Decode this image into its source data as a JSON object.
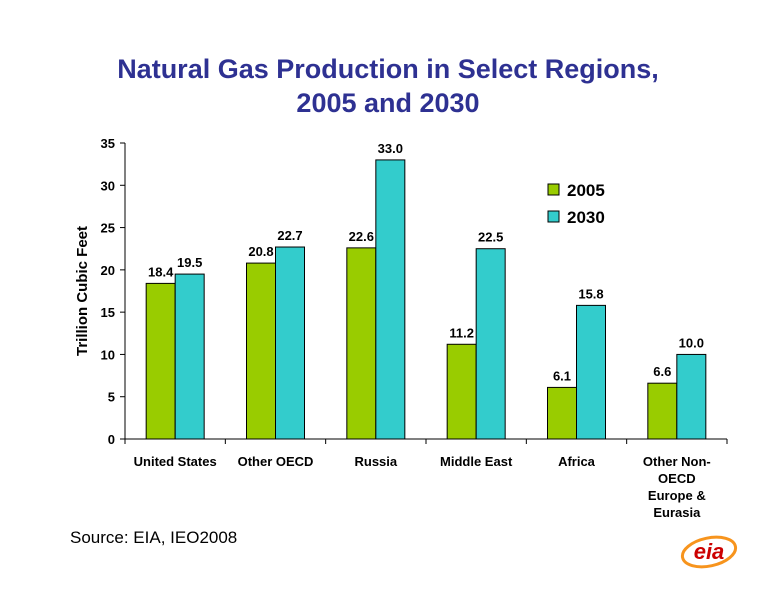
{
  "title": {
    "line1": "Natural Gas Production in Select Regions,",
    "line2": "2005 and 2030"
  },
  "source": "Source:  EIA, IEO2008",
  "logo_text": "eia",
  "chart_data": {
    "type": "bar",
    "title": "Natural Gas Production in Select Regions, 2005 and 2030",
    "xlabel": "",
    "ylabel": "Trillion Cubic Feet",
    "ylim": [
      0,
      35
    ],
    "yticks": [
      0,
      5,
      10,
      15,
      20,
      25,
      30,
      35
    ],
    "grid": false,
    "legend": "right",
    "categories": [
      [
        "United States"
      ],
      [
        "Other OECD"
      ],
      [
        "Russia"
      ],
      [
        "Middle East"
      ],
      [
        "Africa"
      ],
      [
        "Other Non-",
        "OECD",
        "Europe &",
        "Eurasia"
      ]
    ],
    "series": [
      {
        "name": "2005",
        "color": "#99cc00",
        "values": [
          18.4,
          20.8,
          22.6,
          11.2,
          6.1,
          6.6
        ],
        "labels": [
          "18.4",
          "20.8",
          "22.6",
          "11.2",
          "6.1",
          "6.6"
        ]
      },
      {
        "name": "2030",
        "color": "#33cccc",
        "values": [
          19.5,
          22.7,
          33.0,
          22.5,
          15.8,
          10.0
        ],
        "labels": [
          "19.5",
          "22.7",
          "33.0",
          "22.5",
          "15.8",
          "10.0"
        ]
      }
    ]
  },
  "colors": {
    "title": "#2e3192",
    "logo": "#cc0000"
  }
}
